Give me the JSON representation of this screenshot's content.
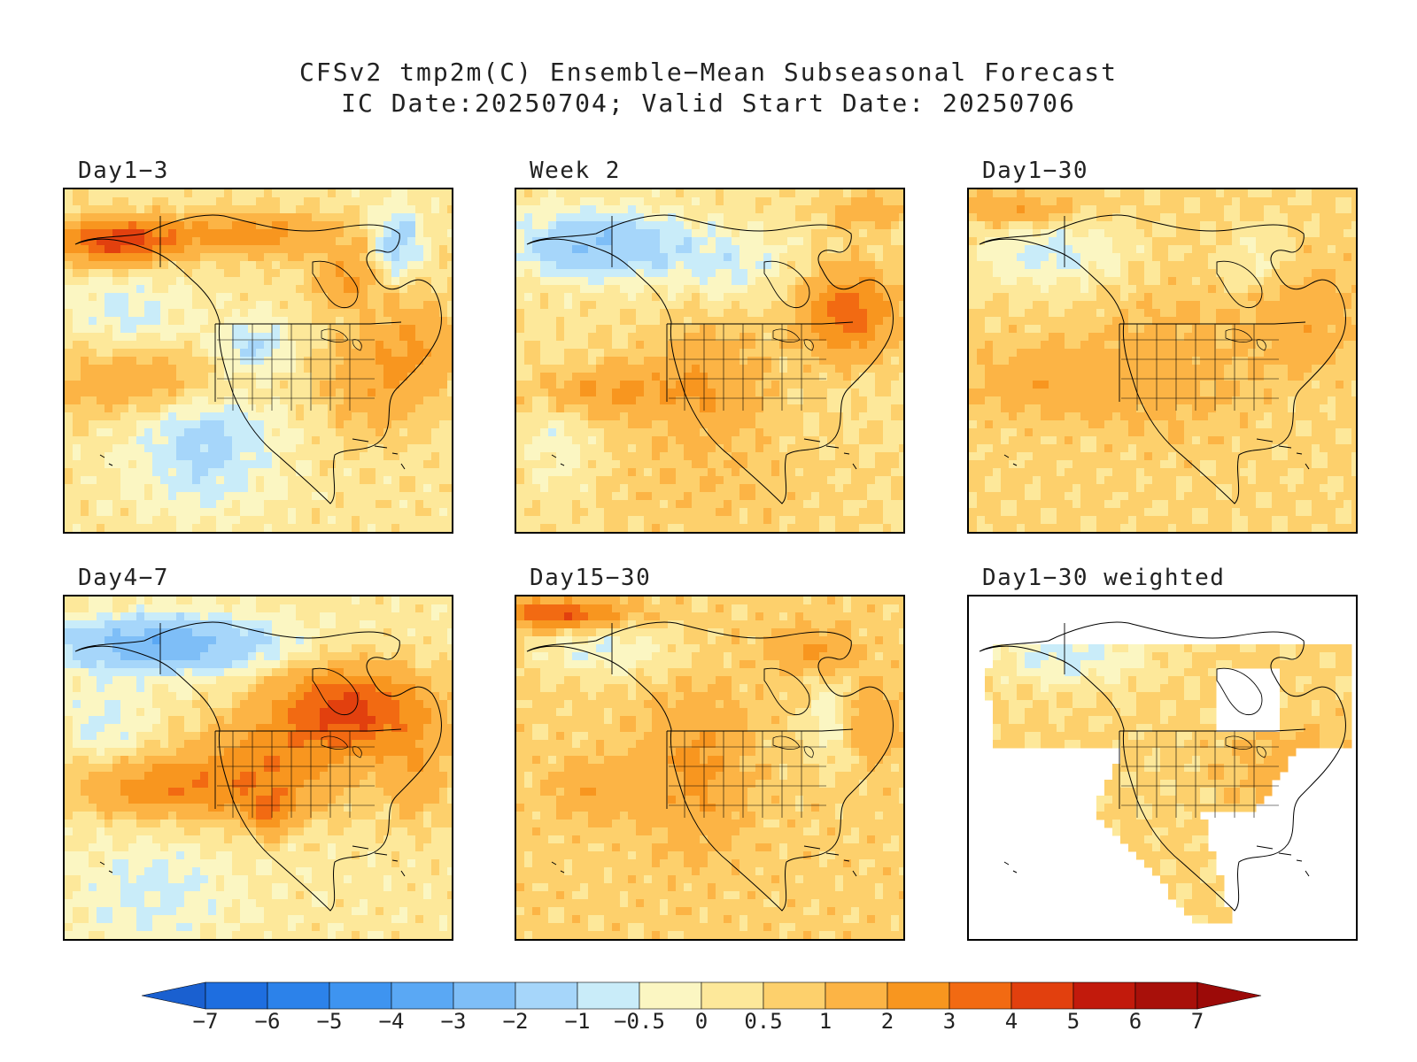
{
  "title_line1": "CFSv2 tmp2m(C) Ensemble−Mean Subseasonal Forecast",
  "title_line2": "IC Date:20250704; Valid Start Date: 20250706",
  "panels": [
    {
      "id": "day1-3",
      "label": "Day1−3",
      "pattern": "mixed-arctic-warm"
    },
    {
      "id": "week2",
      "label": "Week 2",
      "pattern": "cool-north-warm-east"
    },
    {
      "id": "day1-30",
      "label": "Day1−30",
      "pattern": "weak-warm"
    },
    {
      "id": "day4-7",
      "label": "Day4−7",
      "pattern": "strong-warm-canada"
    },
    {
      "id": "day15-30",
      "label": "Day15−30",
      "pattern": "warm-west"
    },
    {
      "id": "day1-30-weighted",
      "label": "Day1−30 weighted",
      "pattern": "weighted-land-only"
    }
  ],
  "colorbar": {
    "labels": [
      "−7",
      "−6",
      "−5",
      "−4",
      "−3",
      "−2",
      "−1",
      "−0.5",
      "0",
      "0.5",
      "1",
      "2",
      "3",
      "4",
      "5",
      "6",
      "7"
    ],
    "colors": [
      "#1e6ee0",
      "#2c82ea",
      "#3e94f0",
      "#5aa8f4",
      "#7ebef7",
      "#a6d6fa",
      "#c9ecf9",
      "#fbf6c2",
      "#fde89a",
      "#fdd06c",
      "#fcb445",
      "#f8961f",
      "#f26a12",
      "#e2400e",
      "#c21a0c",
      "#a8100a"
    ],
    "left_arrow_color": "#1a60d0",
    "right_arrow_color": "#9c0a08"
  }
}
